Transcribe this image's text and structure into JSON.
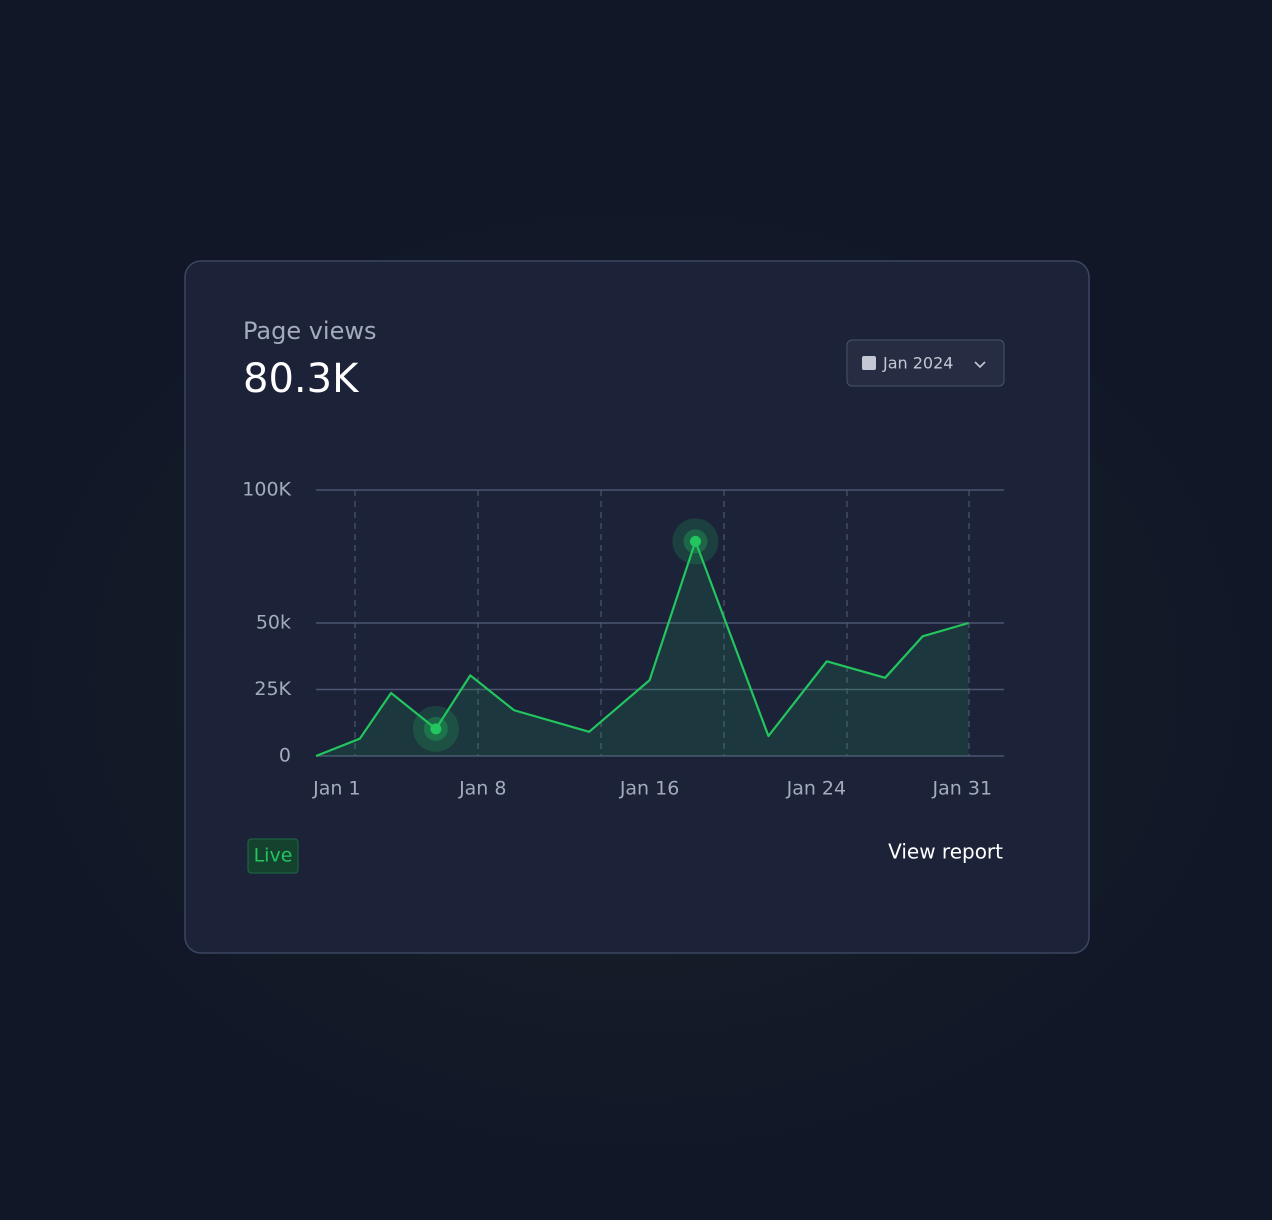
{
  "header": {
    "title": "Page views",
    "total": "80.3K"
  },
  "date_picker": {
    "label": "Jan 2024"
  },
  "footer": {
    "badge": "Live",
    "link": "View report"
  },
  "chart_data": {
    "type": "area",
    "x": [
      0,
      2.1,
      3.6,
      5.75,
      7.4,
      9.5,
      13.1,
      16.0,
      18.2,
      21.7,
      24.5,
      27.3,
      29.1,
      31.3
    ],
    "series": [
      {
        "name": "Page views",
        "color": "#22c55e",
        "values": [
          0,
          6500,
          23700,
          10200,
          30300,
          17200,
          9100,
          28500,
          80700,
          7500,
          35600,
          29400,
          45000,
          50000
        ]
      }
    ],
    "markers": [
      3,
      8
    ],
    "xlim": [
      0,
      33
    ],
    "xticks": [
      {
        "value": 1,
        "label": "Jan 1"
      },
      {
        "value": 8,
        "label": "Jan 8"
      },
      {
        "value": 16,
        "label": "Jan 16"
      },
      {
        "value": 24,
        "label": "Jan 24"
      },
      {
        "value": 31,
        "label": "Jan 31"
      }
    ],
    "ylim": [
      0,
      100000
    ],
    "yticks": [
      0,
      {
        "value": 25000,
        "label": "25K"
      },
      {
        "value": 50000,
        "label": "50k"
      },
      {
        "value": 100000,
        "label": "100K"
      }
    ],
    "grid": true
  }
}
